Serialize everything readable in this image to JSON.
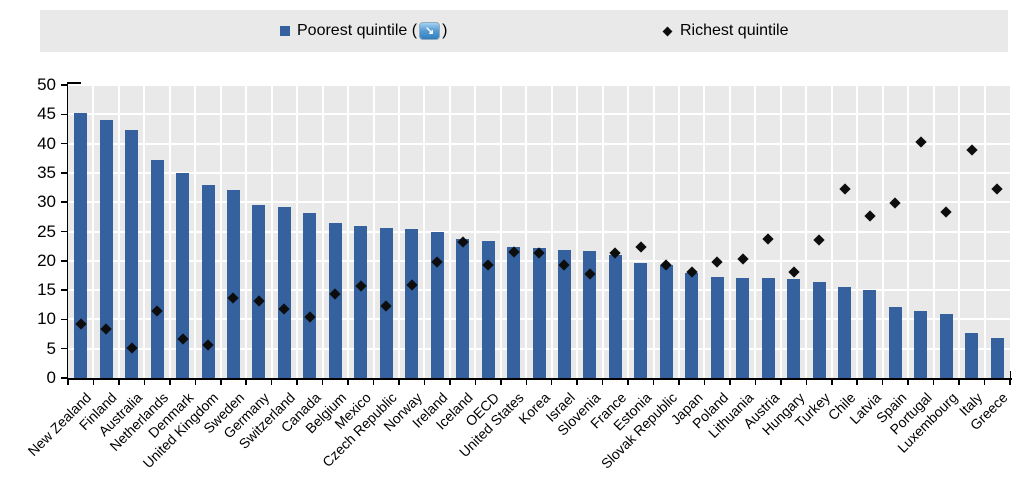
{
  "legend": {
    "poorest": {
      "swatch": "blue-square",
      "label_before": "Poorest quintile (",
      "icon": "statlink-sort-icon",
      "icon_glyph": "↘",
      "label_after": ")"
    },
    "richest": {
      "swatch": "black-diamond",
      "label": "Richest quintile"
    }
  },
  "colors": {
    "bar_blue": "#35619E",
    "marker_black": "#0d0d0d",
    "plot_background": "#E9E9E9",
    "legend_background": "#E9E9E9",
    "gridline": "#FFFFFF",
    "axis": "#000000",
    "statlink_blue": "#2F7EC0"
  },
  "chart_data": {
    "type": "bar",
    "legend_position": "top",
    "grid": {
      "horizontal": true,
      "vertical": true,
      "color": "#FFFFFF"
    },
    "ylim": [
      0,
      50
    ],
    "yticks": [
      0,
      5,
      10,
      15,
      20,
      25,
      30,
      35,
      40,
      45,
      50
    ],
    "categories": [
      "New Zealand",
      "Finland",
      "Australia",
      "Netherlands",
      "Denmark",
      "United Kingdom",
      "Sweden",
      "Germany",
      "Switzerland",
      "Canada",
      "Belgium",
      "Mexico",
      "Czech Republic",
      "Norway",
      "Ireland",
      "Iceland",
      "OECD",
      "United States",
      "Korea",
      "Israel",
      "Slovenia",
      "France",
      "Estonia",
      "Slovak Republic",
      "Japan",
      "Poland",
      "Lithuania",
      "Austria",
      "Hungary",
      "Turkey",
      "Chile",
      "Latvia",
      "Spain",
      "Portugal",
      "Luxembourg",
      "Italy",
      "Greece"
    ],
    "series": [
      {
        "name": "Poorest quintile",
        "type": "bar",
        "color": "#35619E",
        "values": [
          45.3,
          44.0,
          42.3,
          37.2,
          35.0,
          32.9,
          32.0,
          29.6,
          29.2,
          28.1,
          26.5,
          25.9,
          25.6,
          25.4,
          24.9,
          23.7,
          23.4,
          22.4,
          22.1,
          21.9,
          21.7,
          21.0,
          19.7,
          19.2,
          17.9,
          17.2,
          17.1,
          17.0,
          16.9,
          16.4,
          15.6,
          15.0,
          12.1,
          11.4,
          11.0,
          7.7,
          6.9
        ]
      },
      {
        "name": "Richest quintile",
        "type": "scatter",
        "marker": "diamond",
        "color": "#0d0d0d",
        "values": [
          9.2,
          8.3,
          5.2,
          11.5,
          6.7,
          5.6,
          13.6,
          13.2,
          11.8,
          10.4,
          14.3,
          15.7,
          12.3,
          15.9,
          19.8,
          23.2,
          19.3,
          21.5,
          21.3,
          19.3,
          17.7,
          21.3,
          22.3,
          19.2,
          18.1,
          19.8,
          20.3,
          23.7,
          18.1,
          23.5,
          32.3,
          27.7,
          29.9,
          40.3,
          28.4,
          38.9,
          32.2
        ]
      }
    ]
  }
}
